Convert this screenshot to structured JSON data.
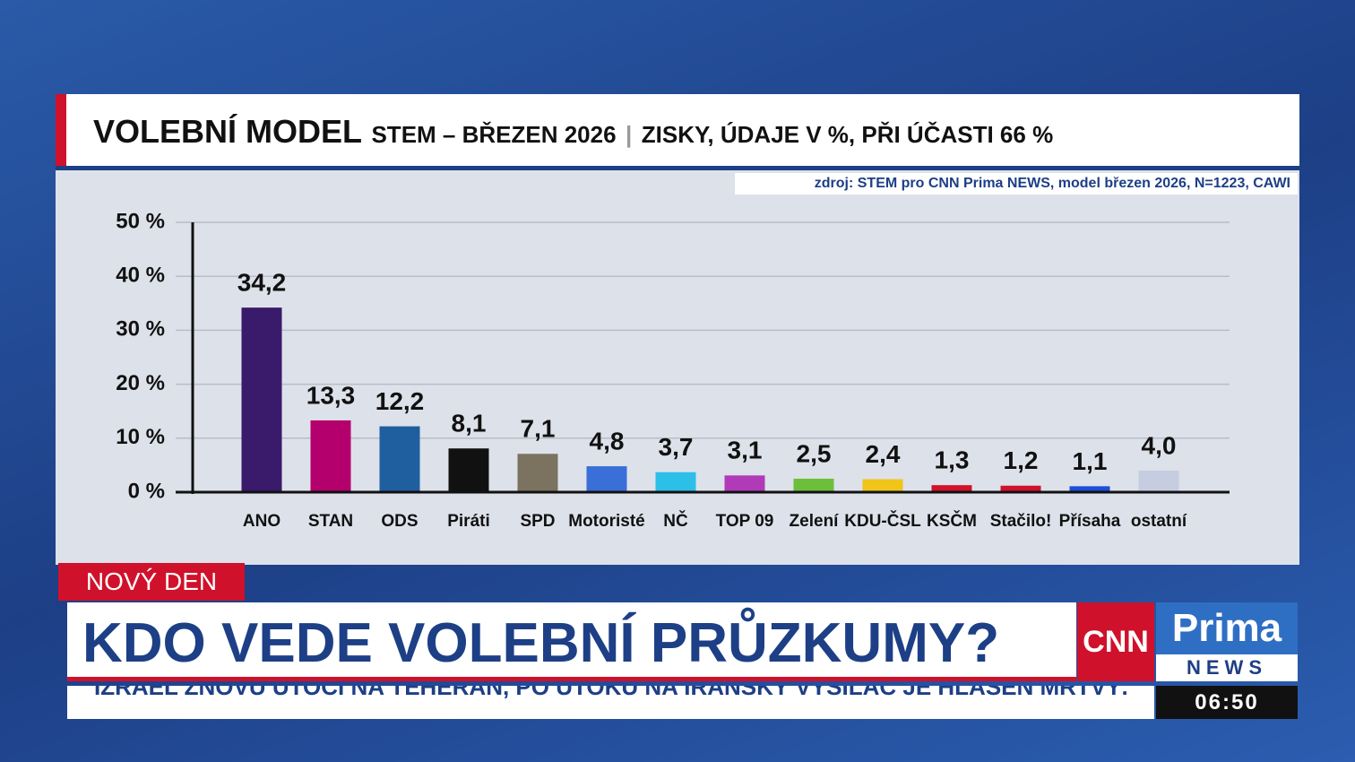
{
  "chart_data": {
    "type": "bar",
    "title": "VOLEBNÍ MODEL",
    "subtitle": "STEM – BŘEZEN 2026",
    "note": "ZISKY, ÚDAJE V %, PŘI ÚČASTI 66 %",
    "source": "zdroj: STEM pro CNN Prima NEWS, model březen 2026, N=1223, CAWI",
    "categories": [
      "ANO",
      "STAN",
      "ODS",
      "Piráti",
      "SPD",
      "Motoristé",
      "NČ",
      "TOP 09",
      "Zelení",
      "KDU-ČSL",
      "KSČM",
      "Stačilo!",
      "Přísaha",
      "ostatní"
    ],
    "values": [
      34.2,
      13.3,
      12.2,
      8.1,
      7.1,
      4.8,
      3.7,
      3.1,
      2.5,
      2.4,
      1.3,
      1.2,
      1.1,
      4.0
    ],
    "value_labels": [
      "34,2",
      "13,3",
      "12,2",
      "8,1",
      "7,1",
      "4,8",
      "3,7",
      "3,1",
      "2,5",
      "2,4",
      "1,3",
      "1,2",
      "1,1",
      "4,0"
    ],
    "colors": [
      "#3a1a6a",
      "#b3006c",
      "#1f5f9f",
      "#111111",
      "#7b7260",
      "#3a6fd8",
      "#2cbfe8",
      "#b03ab8",
      "#6cbf3a",
      "#f0c419",
      "#d0132a",
      "#d0132a",
      "#1d4ed8",
      "#c6cde0"
    ],
    "ylim": [
      0,
      50
    ],
    "yticks": [
      {
        "value": 0,
        "label": "0 %"
      },
      {
        "value": 10,
        "label": "10 %"
      },
      {
        "value": 20,
        "label": "20 %"
      },
      {
        "value": 30,
        "label": "30 %"
      },
      {
        "value": 40,
        "label": "40 %"
      },
      {
        "value": 50,
        "label": "50 %"
      }
    ],
    "grid": true
  },
  "program": "NOVÝ DEN",
  "headline": "KDO VEDE VOLEBNÍ PRŮZKUMY?",
  "ticker": "IZRAEL ZNOVU ÚTOČÍ NA TEHERÁN, PO ÚTOKU NA ÍRÁNSKÝ VYSÍLAČ JE HLÁŠEN MRTVÝ.",
  "logo": {
    "cnn": "CNN",
    "prima": "Prima",
    "news": "NEWS"
  },
  "time": "06:50"
}
